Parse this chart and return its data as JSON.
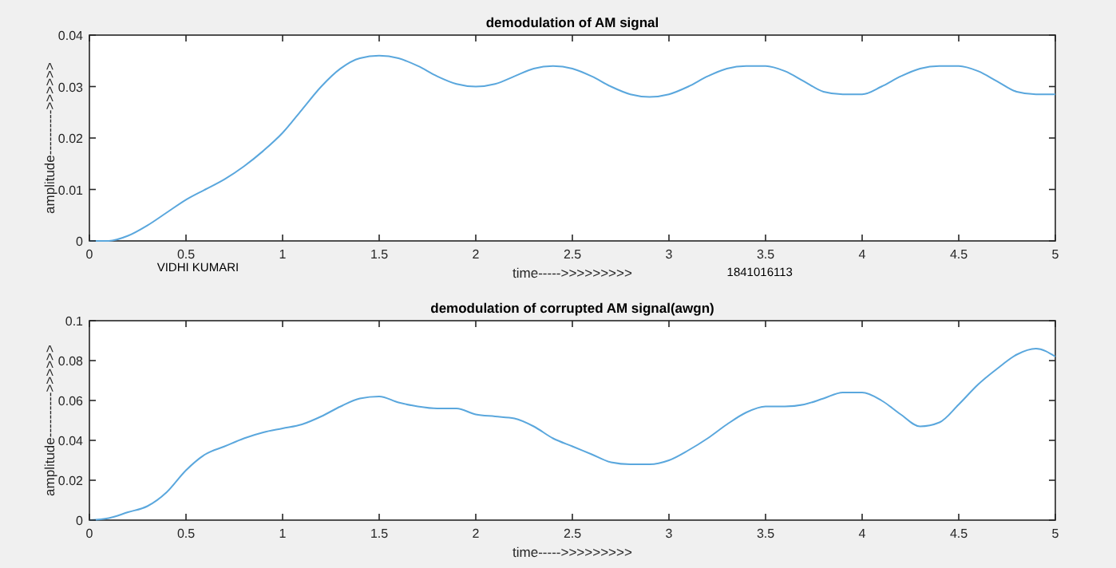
{
  "chart_data": [
    {
      "type": "line",
      "title": "demodulation of AM signal",
      "xlabel": "time----->>>>>>>>>",
      "ylabel": "amplitude---------->>>>>>",
      "annotations": [
        "VIDHI KUMARI",
        "1841016113"
      ],
      "xlim": [
        0,
        5
      ],
      "ylim": [
        0,
        0.04
      ],
      "xticks": [
        0,
        0.5,
        1,
        1.5,
        2,
        2.5,
        3,
        3.5,
        4,
        4.5,
        5
      ],
      "yticks": [
        0,
        0.01,
        0.02,
        0.03,
        0.04
      ],
      "grid": false,
      "x": [
        0,
        0.1,
        0.2,
        0.3,
        0.4,
        0.5,
        0.6,
        0.7,
        0.8,
        0.9,
        1,
        1.1,
        1.2,
        1.3,
        1.4,
        1.5,
        1.6,
        1.7,
        1.8,
        1.9,
        2,
        2.1,
        2.2,
        2.3,
        2.4,
        2.5,
        2.6,
        2.7,
        2.8,
        2.9,
        3,
        3.1,
        3.2,
        3.3,
        3.4,
        3.5,
        3.6,
        3.7,
        3.8,
        3.9,
        4,
        4.1,
        4.2,
        4.3,
        4.4,
        4.5,
        4.6,
        4.7,
        4.8,
        4.9,
        5
      ],
      "series": [
        {
          "color": "#5aa7dd",
          "values": [
            0,
            0,
            0.001,
            0.003,
            0.0055,
            0.008,
            0.01,
            0.012,
            0.0145,
            0.0175,
            0.021,
            0.0255,
            0.03,
            0.0335,
            0.0355,
            0.036,
            0.0355,
            0.034,
            0.032,
            0.0305,
            0.03,
            0.0305,
            0.032,
            0.0335,
            0.034,
            0.0335,
            0.032,
            0.03,
            0.0285,
            0.028,
            0.0285,
            0.03,
            0.032,
            0.0335,
            0.034,
            0.034,
            0.033,
            0.031,
            0.029,
            0.0285,
            0.0285,
            0.03,
            0.032,
            0.0335,
            0.034,
            0.034,
            0.033,
            0.031,
            0.029,
            0.0285,
            0.0285
          ]
        }
      ]
    },
    {
      "type": "line",
      "title": "demodulation of corrupted AM signal(awgn)",
      "xlabel": "time----->>>>>>>>>",
      "ylabel": "amplitude---------->>>>>>",
      "xlim": [
        0,
        5
      ],
      "ylim": [
        0,
        0.1
      ],
      "xticks": [
        0,
        0.5,
        1,
        1.5,
        2,
        2.5,
        3,
        3.5,
        4,
        4.5,
        5
      ],
      "yticks": [
        0,
        0.02,
        0.04,
        0.06,
        0.08,
        0.1
      ],
      "grid": false,
      "x": [
        0,
        0.1,
        0.2,
        0.3,
        0.4,
        0.5,
        0.6,
        0.7,
        0.8,
        0.9,
        1,
        1.1,
        1.2,
        1.3,
        1.4,
        1.5,
        1.6,
        1.7,
        1.8,
        1.9,
        2,
        2.1,
        2.2,
        2.3,
        2.4,
        2.5,
        2.6,
        2.7,
        2.8,
        2.9,
        3,
        3.1,
        3.2,
        3.3,
        3.4,
        3.5,
        3.6,
        3.7,
        3.8,
        3.9,
        4,
        4.1,
        4.2,
        4.3,
        4.4,
        4.5,
        4.6,
        4.7,
        4.8,
        4.9,
        5
      ],
      "series": [
        {
          "color": "#5aa7dd",
          "values": [
            0,
            0.001,
            0.004,
            0.007,
            0.014,
            0.025,
            0.033,
            0.037,
            0.041,
            0.044,
            0.046,
            0.048,
            0.052,
            0.057,
            0.061,
            0.062,
            0.059,
            0.057,
            0.056,
            0.056,
            0.053,
            0.052,
            0.051,
            0.047,
            0.041,
            0.037,
            0.033,
            0.029,
            0.028,
            0.028,
            0.03,
            0.035,
            0.041,
            0.048,
            0.054,
            0.057,
            0.057,
            0.058,
            0.061,
            0.064,
            0.064,
            0.06,
            0.053,
            0.047,
            0.049,
            0.058,
            0.068,
            0.076,
            0.083,
            0.086,
            0.082
          ]
        }
      ]
    }
  ]
}
